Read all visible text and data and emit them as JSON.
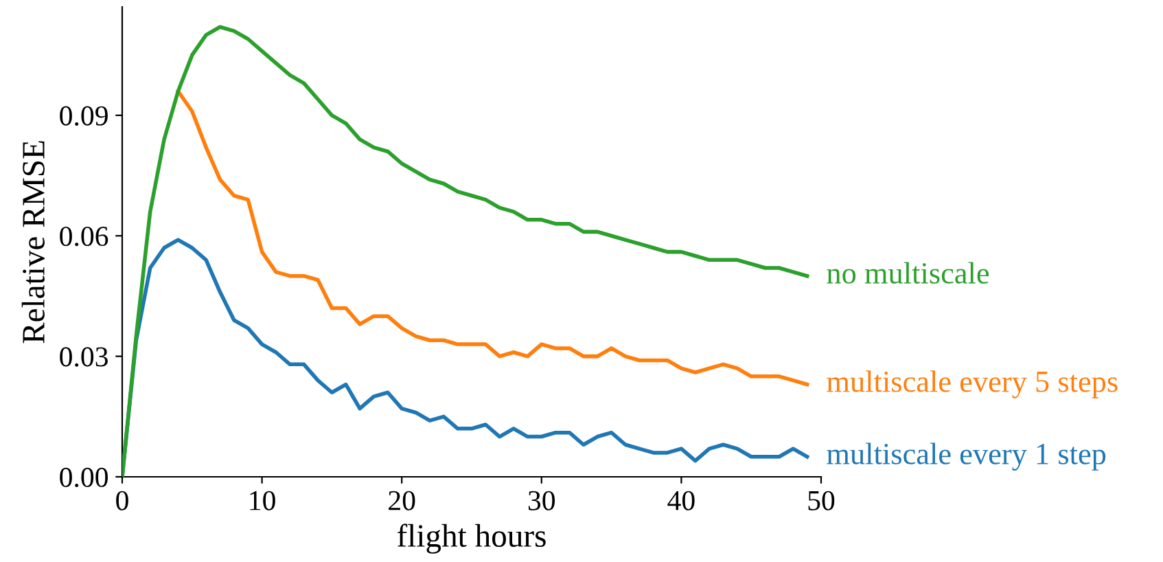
{
  "chart_data": {
    "type": "line",
    "xlabel": "flight hours",
    "ylabel": "Relative RMSE",
    "x": [
      0,
      1,
      2,
      3,
      4,
      5,
      6,
      7,
      8,
      9,
      10,
      11,
      12,
      13,
      14,
      15,
      16,
      17,
      18,
      19,
      20,
      21,
      22,
      23,
      24,
      25,
      26,
      27,
      28,
      29,
      30,
      31,
      32,
      33,
      34,
      35,
      36,
      37,
      38,
      39,
      40,
      41,
      42,
      43,
      44,
      45,
      46,
      47,
      48,
      49
    ],
    "series": [
      {
        "name": "no multiscale",
        "color": "#2ca02c",
        "values": [
          0,
          0.035,
          0.066,
          0.084,
          0.096,
          0.105,
          0.11,
          0.112,
          0.111,
          0.109,
          0.106,
          0.103,
          0.1,
          0.098,
          0.094,
          0.09,
          0.088,
          0.084,
          0.082,
          0.081,
          0.078,
          0.076,
          0.074,
          0.073,
          0.071,
          0.07,
          0.069,
          0.067,
          0.066,
          0.064,
          0.064,
          0.063,
          0.063,
          0.061,
          0.061,
          0.06,
          0.059,
          0.058,
          0.057,
          0.056,
          0.056,
          0.055,
          0.054,
          0.054,
          0.054,
          0.053,
          0.052,
          0.052,
          0.051,
          0.05
        ]
      },
      {
        "name": "multiscale every 5 steps",
        "color": "#ff7f0e",
        "values": [
          null,
          null,
          null,
          null,
          0.096,
          0.091,
          0.082,
          0.074,
          0.07,
          0.069,
          0.056,
          0.051,
          0.05,
          0.05,
          0.049,
          0.042,
          0.042,
          0.038,
          0.04,
          0.04,
          0.037,
          0.035,
          0.034,
          0.034,
          0.033,
          0.033,
          0.033,
          0.03,
          0.031,
          0.03,
          0.033,
          0.032,
          0.032,
          0.03,
          0.03,
          0.032,
          0.03,
          0.029,
          0.029,
          0.029,
          0.027,
          0.026,
          0.027,
          0.028,
          0.027,
          0.025,
          0.025,
          0.025,
          0.024,
          0.023
        ]
      },
      {
        "name": "multiscale every 1 step",
        "color": "#1f77b4",
        "values": [
          0,
          0.034,
          0.052,
          0.057,
          0.059,
          0.057,
          0.054,
          0.046,
          0.039,
          0.037,
          0.033,
          0.031,
          0.028,
          0.028,
          0.024,
          0.021,
          0.023,
          0.017,
          0.02,
          0.021,
          0.017,
          0.016,
          0.014,
          0.015,
          0.012,
          0.012,
          0.013,
          0.01,
          0.012,
          0.01,
          0.01,
          0.011,
          0.011,
          0.008,
          0.01,
          0.011,
          0.008,
          0.007,
          0.006,
          0.006,
          0.007,
          0.004,
          0.007,
          0.008,
          0.007,
          0.005,
          0.005,
          0.005,
          0.007,
          0.005
        ]
      }
    ],
    "xlim": [
      0,
      50
    ],
    "ylim": [
      0,
      0.117
    ],
    "xticks": [
      0,
      10,
      20,
      30,
      40,
      50
    ],
    "yticks": [
      {
        "value": 0,
        "label": "0.00"
      },
      {
        "value": 0.03,
        "label": "0.03"
      },
      {
        "value": 0.06,
        "label": "0.06"
      },
      {
        "value": 0.09,
        "label": "0.09"
      }
    ],
    "grid": false,
    "legend": false,
    "marker": "none",
    "line_style": "solid"
  }
}
